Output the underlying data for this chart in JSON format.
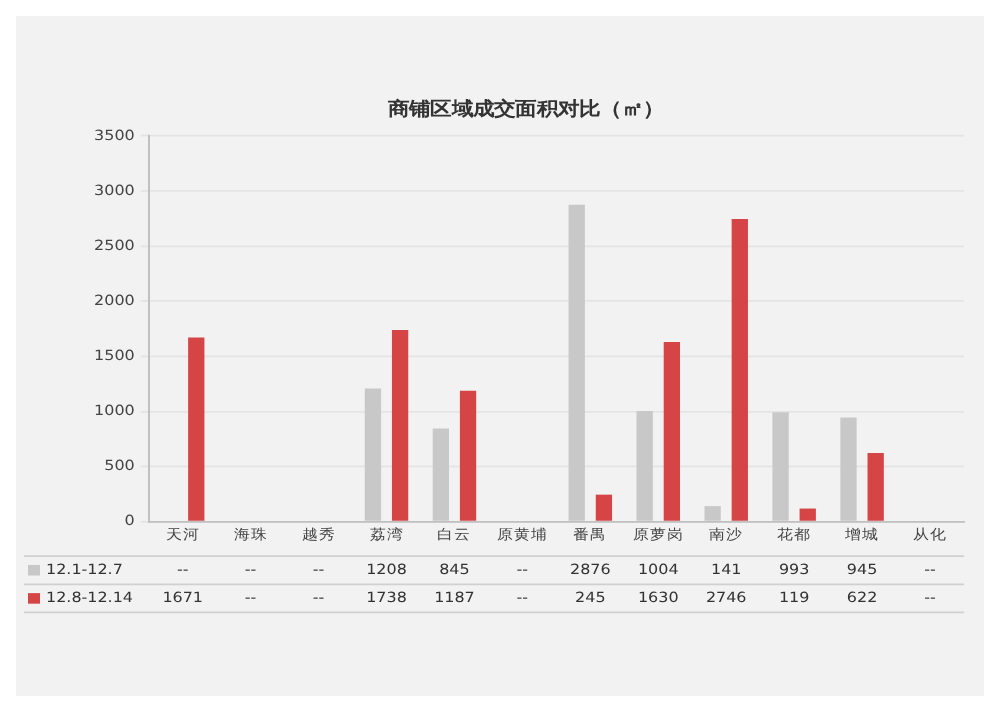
{
  "chart_data": {
    "type": "bar",
    "title": "商铺区域成交面积对比（㎡）",
    "categories": [
      "天河",
      "海珠",
      "越秀",
      "荔湾",
      "白云",
      "原黄埔",
      "番禺",
      "原萝岗",
      "南沙",
      "花都",
      "增城",
      "从化"
    ],
    "series": [
      {
        "name": "12.1-12.7",
        "color": "#c8c8c8",
        "values": [
          null,
          null,
          null,
          1208,
          845,
          null,
          2876,
          1004,
          141,
          993,
          945,
          null
        ],
        "value_labels": [
          "--",
          "--",
          "--",
          "1208",
          "845",
          "--",
          "2876",
          "1004",
          "141",
          "993",
          "945",
          "--"
        ]
      },
      {
        "name": "12.8-12.14",
        "color": "#d64545",
        "values": [
          1671,
          null,
          null,
          1738,
          1187,
          null,
          245,
          1630,
          2746,
          119,
          622,
          null
        ],
        "value_labels": [
          "1671",
          "--",
          "--",
          "1738",
          "1187",
          "--",
          "245",
          "1630",
          "2746",
          "119",
          "622",
          "--"
        ]
      }
    ],
    "ylim": [
      0,
      3500
    ],
    "yticks": [
      0,
      500,
      1000,
      1500,
      2000,
      2500,
      3000,
      3500
    ],
    "grid": "y",
    "legend": "bottom"
  }
}
